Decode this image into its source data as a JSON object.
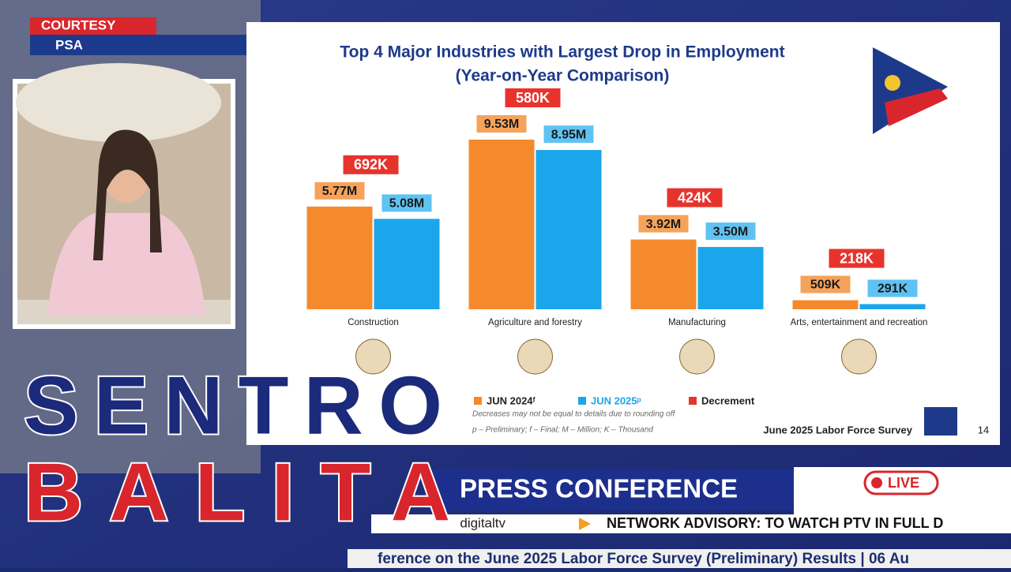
{
  "overlay": {
    "courtesy": "COURTESY",
    "source": "PSA",
    "show_title_1": "SENTRO",
    "show_title_2": "BALITA",
    "segment": "PRESS CONFERENCE",
    "live": "LIVE",
    "handle": "digitaltv",
    "advisory": "NETWORK ADVISORY: TO WATCH PTV IN FULL D",
    "ticker": "ference on the June 2025 Labor Force Survey (Preliminary) Results | 06 Au"
  },
  "chart_data": {
    "type": "bar",
    "title": "Top 4 Major Industries with Largest Drop in Employment",
    "subtitle": "(Year-on-Year Comparison)",
    "categories": [
      "Construction",
      "Agriculture and forestry",
      "Manufacturing",
      "Arts, entertainment and recreation"
    ],
    "series": [
      {
        "name": "JUN 2024ᶠ",
        "color": "#f58a2c",
        "values": [
          5.77,
          9.53,
          3.92,
          0.509
        ],
        "value_labels": [
          "5.77M",
          "9.53M",
          "3.92M",
          "509K"
        ]
      },
      {
        "name": "JUN 2025ᵖ",
        "color": "#1ba6ec",
        "values": [
          5.08,
          8.95,
          3.5,
          0.291
        ],
        "value_labels": [
          "5.08M",
          "8.95M",
          "3.50M",
          "291K"
        ]
      },
      {
        "name": "Decrement",
        "color": "#e8332c",
        "values": [
          0.692,
          0.58,
          0.424,
          0.218
        ],
        "value_labels": [
          "692K",
          "580K",
          "424K",
          "218K"
        ]
      }
    ],
    "notes": [
      "Decreases may not be equal to details due to rounding off",
      "p – Preliminary; f – Final; M – Million; K – Thousand"
    ],
    "footer": "June 2025 Labor Force Survey",
    "page": "14"
  }
}
